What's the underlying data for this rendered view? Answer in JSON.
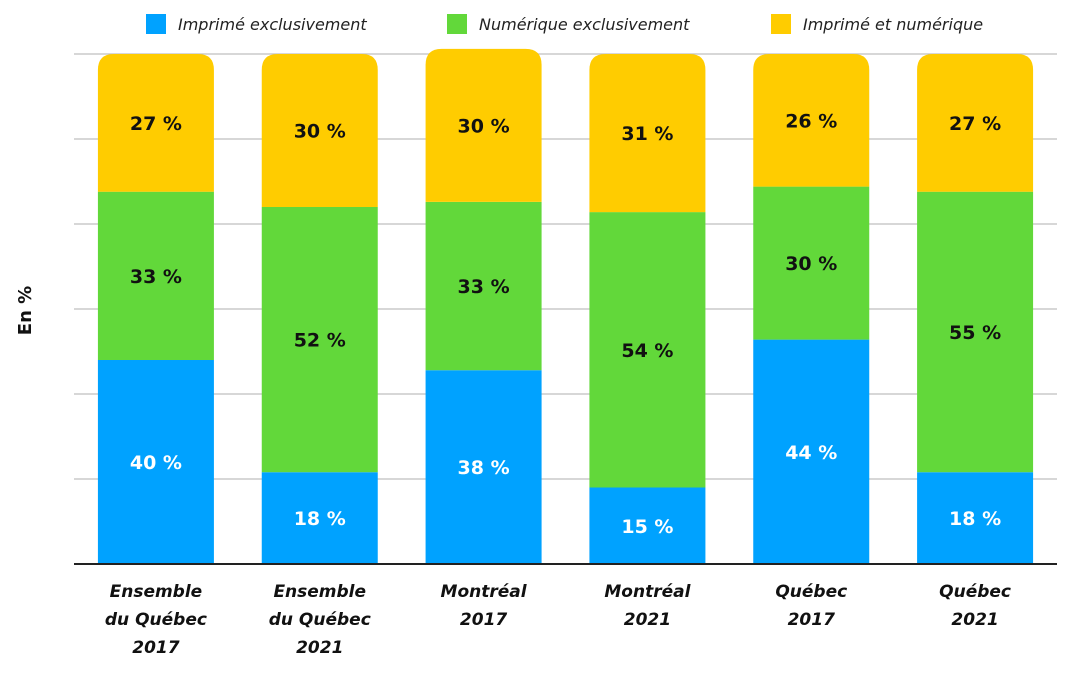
{
  "chart_data": {
    "type": "bar",
    "stacked": true,
    "title": "",
    "xlabel": "",
    "ylabel": "En %",
    "ylim": [
      0,
      100
    ],
    "grid": true,
    "legend_position": "top",
    "categories": [
      [
        "Ensemble",
        "du Québec",
        "2017"
      ],
      [
        "Ensemble",
        "du Québec",
        "2021"
      ],
      [
        "Montréal",
        "2017"
      ],
      [
        "Montréal",
        "2021"
      ],
      [
        "Québec",
        "2017"
      ],
      [
        "Québec",
        "2021"
      ]
    ],
    "series": [
      {
        "name": "Imprimé exclusivement",
        "color": "#00A2FF",
        "label_color": "#ffffff",
        "values": [
          40,
          18,
          38,
          15,
          44,
          18
        ],
        "labels": [
          "40 %",
          "18 %",
          "38 %",
          "15 %",
          "44 %",
          "18 %"
        ]
      },
      {
        "name": "Numérique exclusivement",
        "color": "#62D83A",
        "label_color": "#111111",
        "values": [
          33,
          52,
          33,
          54,
          30,
          55
        ],
        "labels": [
          "33 %",
          "52 %",
          "33 %",
          "54 %",
          "30 %",
          "55 %"
        ]
      },
      {
        "name": "Imprimé et numérique",
        "color": "#FFCC00",
        "label_color": "#111111",
        "values": [
          27,
          30,
          30,
          31,
          26,
          27
        ],
        "labels": [
          "27 %",
          "30 %",
          "30 %",
          "31 %",
          "26 %",
          "27 %"
        ]
      }
    ]
  }
}
